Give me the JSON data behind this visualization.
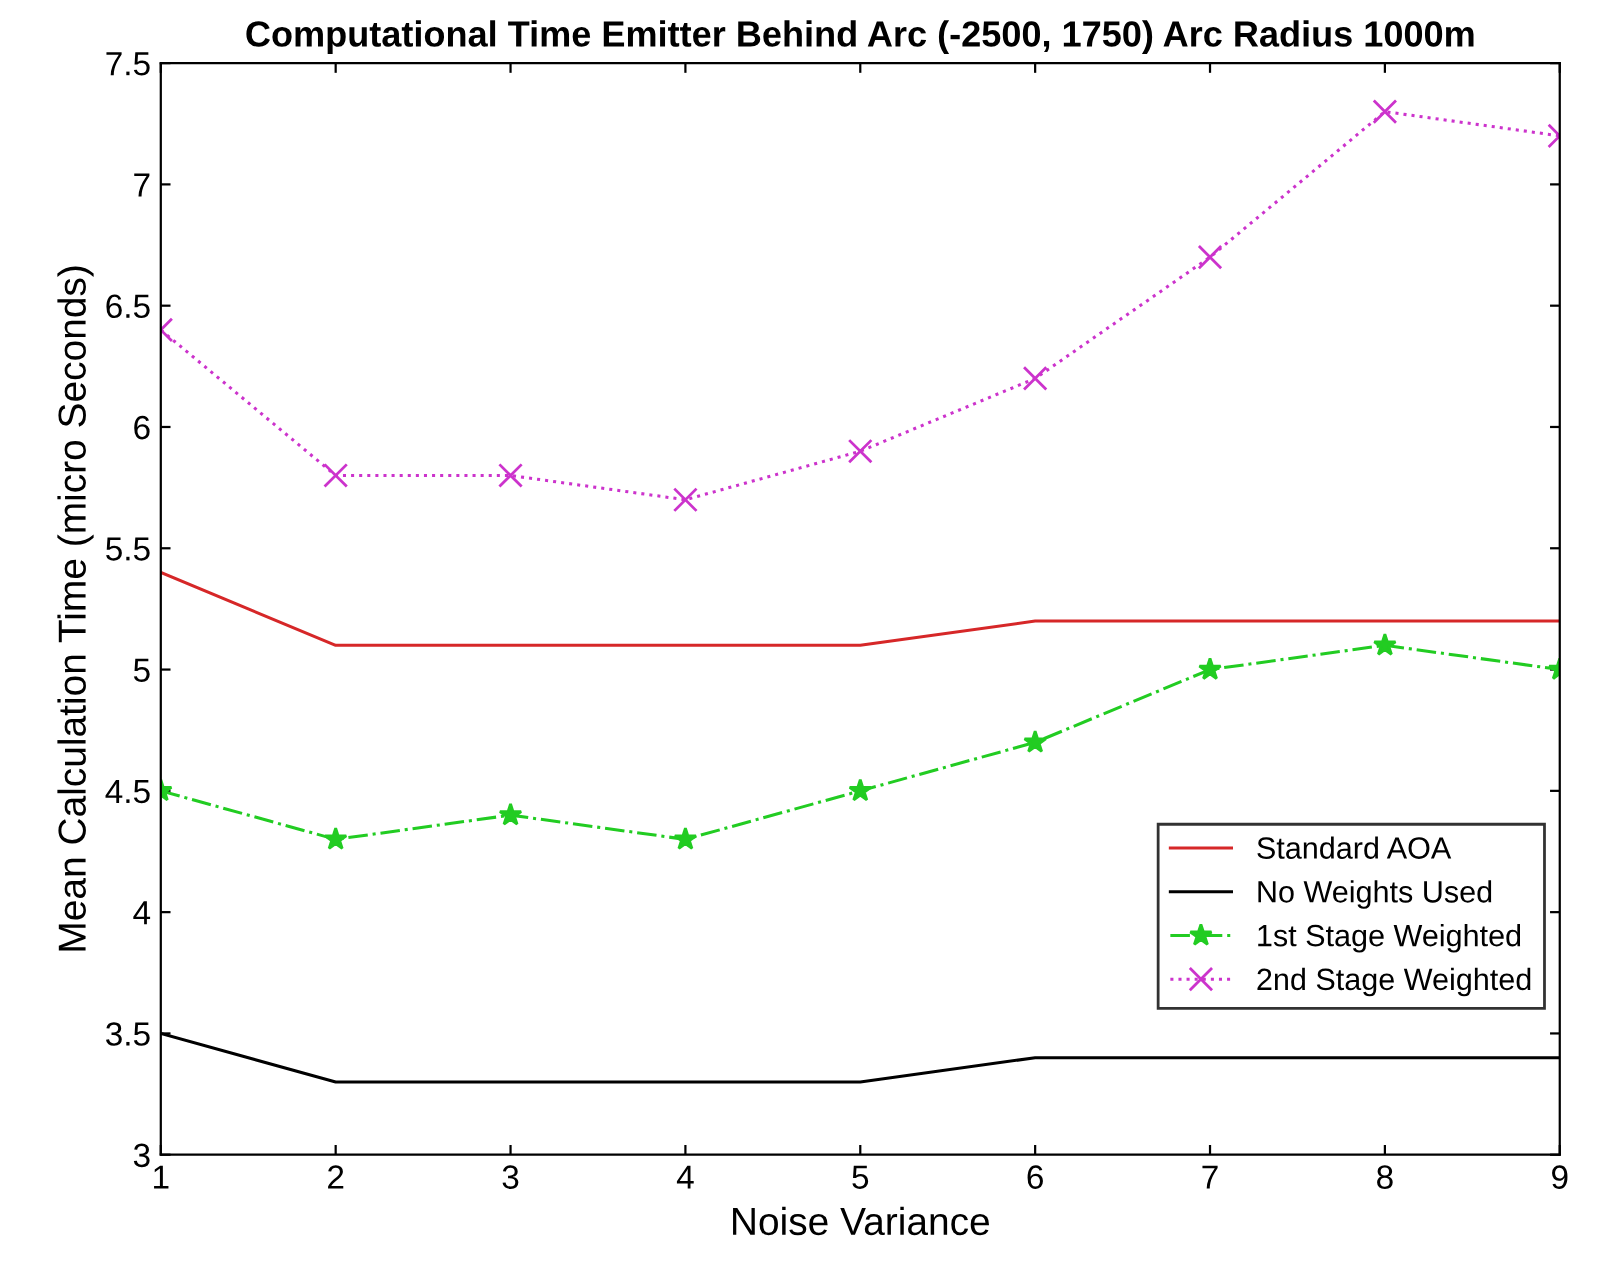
{
  "chart_data": {
    "type": "line",
    "title": "Computational Time Emitter Behind Arc (-2500, 1750) Arc Radius 1000m",
    "xlabel": "Noise Variance",
    "ylabel": "Mean Calculation Time (micro Seconds)",
    "x": [
      1,
      2,
      3,
      4,
      5,
      6,
      7,
      8,
      9
    ],
    "series": [
      {
        "name": "Standard AOA",
        "color": "#d62728",
        "marker": "none",
        "line_style": "solid",
        "values": [
          5.4,
          5.1,
          5.1,
          5.1,
          5.1,
          5.2,
          5.2,
          5.2,
          5.2
        ]
      },
      {
        "name": "No Weights Used",
        "color": "#000000",
        "marker": "none",
        "line_style": "solid",
        "values": [
          3.5,
          3.3,
          3.3,
          3.3,
          3.3,
          3.4,
          3.4,
          3.4,
          3.4
        ]
      },
      {
        "name": "1st Stage Weighted",
        "color": "#22cc22",
        "marker": "star",
        "line_style": "dashdot",
        "values": [
          4.5,
          4.3,
          4.4,
          4.3,
          4.5,
          4.7,
          5.0,
          5.1,
          5.0
        ]
      },
      {
        "name": "2nd Stage Weighted",
        "color": "#cc33cc",
        "marker": "cross",
        "line_style": "dotted",
        "values": [
          6.4,
          5.8,
          5.8,
          5.7,
          5.9,
          6.2,
          6.7,
          7.3,
          7.2
        ]
      }
    ],
    "xlim": [
      1,
      9
    ],
    "ylim": [
      3,
      7.5
    ],
    "xticks": [
      1,
      2,
      3,
      4,
      5,
      6,
      7,
      8,
      9
    ],
    "yticks": [
      3,
      3.5,
      4,
      4.5,
      5,
      5.5,
      6,
      6.5,
      7,
      7.5
    ],
    "grid": false,
    "legend": "bottom right"
  }
}
